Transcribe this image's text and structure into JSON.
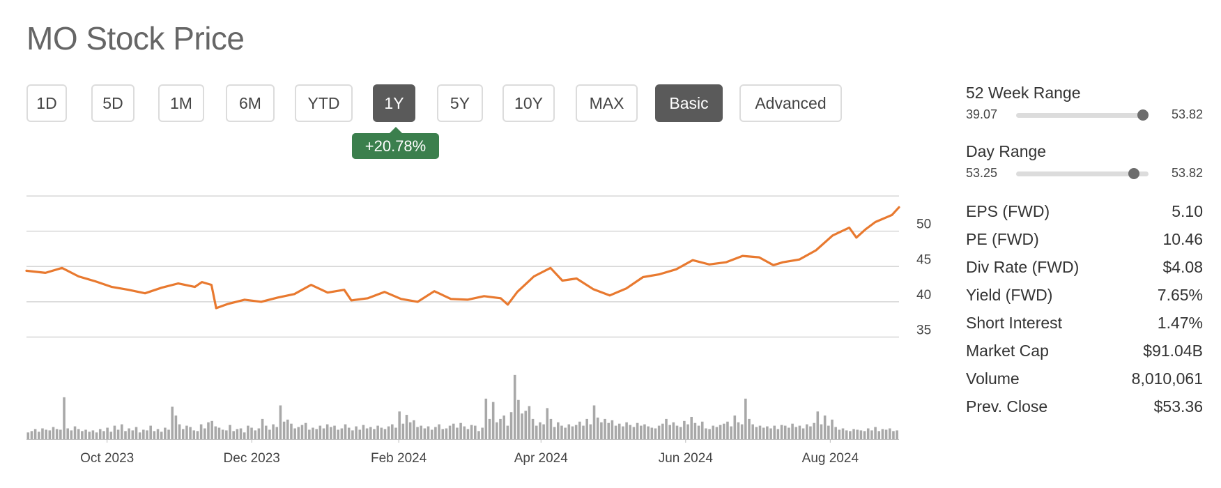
{
  "title": "MO Stock Price",
  "range_buttons": [
    {
      "label": "1D",
      "active": false
    },
    {
      "label": "5D",
      "active": false
    },
    {
      "label": "1M",
      "active": false
    },
    {
      "label": "6M",
      "active": false
    },
    {
      "label": "YTD",
      "active": false
    },
    {
      "label": "1Y",
      "active": true
    },
    {
      "label": "5Y",
      "active": false
    },
    {
      "label": "10Y",
      "active": false
    },
    {
      "label": "MAX",
      "active": false
    }
  ],
  "view_buttons": [
    {
      "label": "Basic",
      "active": true
    },
    {
      "label": "Advanced",
      "active": false
    }
  ],
  "change_badge": "+20.78%",
  "colors": {
    "price_line": "#e8792f",
    "volume_bar": "#a8a8a8",
    "gain": "#3b7f4d",
    "active_button": "#5a5a5a"
  },
  "stats": {
    "week52": {
      "label": "52 Week Range",
      "low": "39.07",
      "high": "53.82",
      "position": 0.96
    },
    "day": {
      "label": "Day Range",
      "low": "53.25",
      "high": "53.82",
      "position": 0.89
    },
    "rows": [
      {
        "label": "EPS (FWD)",
        "value": "5.10"
      },
      {
        "label": "PE (FWD)",
        "value": "10.46"
      },
      {
        "label": "Div Rate (FWD)",
        "value": "$4.08"
      },
      {
        "label": "Yield (FWD)",
        "value": "7.65%"
      },
      {
        "label": "Short Interest",
        "value": "1.47%"
      },
      {
        "label": "Market Cap",
        "value": "$91.04B"
      },
      {
        "label": "Volume",
        "value": "8,010,061"
      },
      {
        "label": "Prev. Close",
        "value": "$53.36"
      }
    ]
  },
  "chart_data": {
    "type": "line",
    "title": "",
    "xlabel": "",
    "ylabel": "",
    "ylim": [
      30.9,
      55.6
    ],
    "yticks": [
      35,
      40,
      45,
      50
    ],
    "grid": true,
    "x_range": [
      "2023-08-28",
      "2024-08-30"
    ],
    "x_ticks": [
      {
        "label": "Oct 2023",
        "date": "2023-10-01"
      },
      {
        "label": "Dec 2023",
        "date": "2023-12-01"
      },
      {
        "label": "Feb 2024",
        "date": "2024-02-01"
      },
      {
        "label": "Apr 2024",
        "date": "2024-04-01"
      },
      {
        "label": "Jun 2024",
        "date": "2024-06-01"
      },
      {
        "label": "Aug 2024",
        "date": "2024-08-01"
      }
    ],
    "series": [
      {
        "values": [
          [
            "2023-08-28",
            44.4
          ],
          [
            "2023-09-05",
            44.1
          ],
          [
            "2023-09-12",
            44.8
          ],
          [
            "2023-09-19",
            43.6
          ],
          [
            "2023-09-26",
            42.9
          ],
          [
            "2023-10-03",
            42.1
          ],
          [
            "2023-10-10",
            41.7
          ],
          [
            "2023-10-17",
            41.2
          ],
          [
            "2023-10-24",
            42.0
          ],
          [
            "2023-10-31",
            42.6
          ],
          [
            "2023-11-07",
            42.1
          ],
          [
            "2023-11-10",
            42.8
          ],
          [
            "2023-11-14",
            42.4
          ],
          [
            "2023-11-16",
            39.1
          ],
          [
            "2023-11-21",
            39.7
          ],
          [
            "2023-11-28",
            40.3
          ],
          [
            "2023-12-05",
            40.0
          ],
          [
            "2023-12-12",
            40.6
          ],
          [
            "2023-12-19",
            41.1
          ],
          [
            "2023-12-26",
            42.4
          ],
          [
            "2024-01-02",
            41.3
          ],
          [
            "2024-01-09",
            41.7
          ],
          [
            "2024-01-12",
            40.2
          ],
          [
            "2024-01-19",
            40.5
          ],
          [
            "2024-01-26",
            41.4
          ],
          [
            "2024-02-02",
            40.4
          ],
          [
            "2024-02-09",
            40.0
          ],
          [
            "2024-02-16",
            41.5
          ],
          [
            "2024-02-23",
            40.4
          ],
          [
            "2024-03-01",
            40.3
          ],
          [
            "2024-03-08",
            40.8
          ],
          [
            "2024-03-15",
            40.5
          ],
          [
            "2024-03-18",
            39.6
          ],
          [
            "2024-03-22",
            41.4
          ],
          [
            "2024-03-29",
            43.6
          ],
          [
            "2024-04-05",
            44.8
          ],
          [
            "2024-04-10",
            43.0
          ],
          [
            "2024-04-16",
            43.3
          ],
          [
            "2024-04-23",
            41.8
          ],
          [
            "2024-04-30",
            40.9
          ],
          [
            "2024-05-07",
            41.9
          ],
          [
            "2024-05-14",
            43.5
          ],
          [
            "2024-05-21",
            43.9
          ],
          [
            "2024-05-28",
            44.6
          ],
          [
            "2024-06-04",
            45.9
          ],
          [
            "2024-06-11",
            45.3
          ],
          [
            "2024-06-18",
            45.6
          ],
          [
            "2024-06-25",
            46.5
          ],
          [
            "2024-07-02",
            46.3
          ],
          [
            "2024-07-08",
            45.2
          ],
          [
            "2024-07-12",
            45.6
          ],
          [
            "2024-07-19",
            46.0
          ],
          [
            "2024-07-26",
            47.3
          ],
          [
            "2024-08-02",
            49.4
          ],
          [
            "2024-08-09",
            50.5
          ],
          [
            "2024-08-12",
            49.1
          ],
          [
            "2024-08-16",
            50.3
          ],
          [
            "2024-08-20",
            51.3
          ],
          [
            "2024-08-27",
            52.3
          ],
          [
            "2024-08-30",
            53.4
          ]
        ]
      }
    ],
    "volume": {
      "values_relative": [
        0.1,
        0.12,
        0.15,
        0.11,
        0.16,
        0.14,
        0.13,
        0.18,
        0.15,
        0.14,
        0.62,
        0.16,
        0.13,
        0.19,
        0.15,
        0.12,
        0.14,
        0.11,
        0.13,
        0.1,
        0.15,
        0.12,
        0.17,
        0.11,
        0.2,
        0.14,
        0.22,
        0.12,
        0.16,
        0.13,
        0.18,
        0.1,
        0.14,
        0.13,
        0.2,
        0.12,
        0.15,
        0.11,
        0.17,
        0.14,
        0.48,
        0.35,
        0.22,
        0.15,
        0.2,
        0.18,
        0.13,
        0.12,
        0.22,
        0.16,
        0.25,
        0.27,
        0.19,
        0.17,
        0.14,
        0.13,
        0.21,
        0.12,
        0.15,
        0.16,
        0.1,
        0.2,
        0.17,
        0.13,
        0.16,
        0.3,
        0.2,
        0.14,
        0.22,
        0.18,
        0.5,
        0.26,
        0.29,
        0.23,
        0.16,
        0.18,
        0.21,
        0.24,
        0.14,
        0.17,
        0.15,
        0.2,
        0.16,
        0.22,
        0.18,
        0.2,
        0.14,
        0.16,
        0.22,
        0.17,
        0.13,
        0.19,
        0.14,
        0.21,
        0.16,
        0.18,
        0.15,
        0.2,
        0.17,
        0.15,
        0.19,
        0.22,
        0.17,
        0.41,
        0.23,
        0.36,
        0.25,
        0.28,
        0.18,
        0.2,
        0.16,
        0.19,
        0.14,
        0.18,
        0.22,
        0.15,
        0.16,
        0.2,
        0.23,
        0.17,
        0.24,
        0.19,
        0.15,
        0.21,
        0.2,
        0.12,
        0.17,
        0.6,
        0.3,
        0.55,
        0.25,
        0.3,
        0.35,
        0.2,
        0.4,
        0.95,
        0.58,
        0.38,
        0.42,
        0.49,
        0.3,
        0.2,
        0.25,
        0.22,
        0.46,
        0.3,
        0.18,
        0.25,
        0.2,
        0.17,
        0.22,
        0.19,
        0.21,
        0.26,
        0.2,
        0.3,
        0.22,
        0.5,
        0.32,
        0.25,
        0.3,
        0.24,
        0.28,
        0.2,
        0.23,
        0.19,
        0.25,
        0.21,
        0.18,
        0.24,
        0.2,
        0.22,
        0.19,
        0.17,
        0.16,
        0.2,
        0.23,
        0.3,
        0.21,
        0.25,
        0.2,
        0.18,
        0.27,
        0.22,
        0.33,
        0.24,
        0.2,
        0.26,
        0.16,
        0.15,
        0.2,
        0.18,
        0.21,
        0.23,
        0.26,
        0.19,
        0.35,
        0.25,
        0.22,
        0.6,
        0.3,
        0.22,
        0.18,
        0.2,
        0.17,
        0.19,
        0.16,
        0.2,
        0.15,
        0.21,
        0.2,
        0.17,
        0.23,
        0.18,
        0.2,
        0.16,
        0.22,
        0.19,
        0.24,
        0.41,
        0.22,
        0.35,
        0.2,
        0.29,
        0.18,
        0.14,
        0.16,
        0.13,
        0.12,
        0.15,
        0.14,
        0.13,
        0.12,
        0.16,
        0.13,
        0.18,
        0.12,
        0.15,
        0.14,
        0.16,
        0.12,
        0.13
      ]
    }
  }
}
